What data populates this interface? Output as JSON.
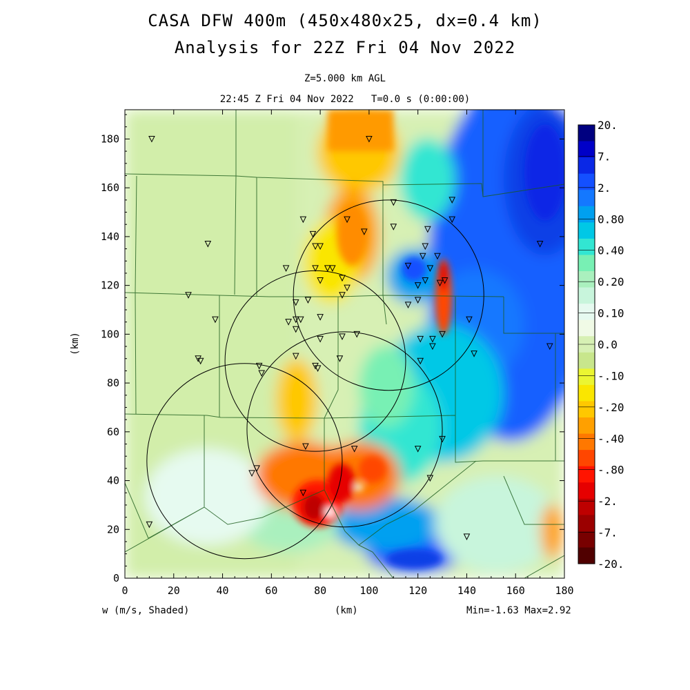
{
  "chart_data": {
    "type": "heatmap",
    "title_line1": "CASA DFW 400m (450x480x25, dx=0.4 km)",
    "title_line2": "Analysis for 22Z Fri 04 Nov 2022",
    "subtitle_level": "Z=5.000 km AGL",
    "subtitle_time": "22:45 Z Fri 04 Nov 2022   T=0.0 s (0:00:00)",
    "xlabel": "(km)",
    "ylabel": "(km)",
    "xlim": [
      0,
      180
    ],
    "ylim": [
      0,
      192
    ],
    "x_ticks": [
      0,
      20,
      40,
      60,
      80,
      100,
      120,
      140,
      160,
      180
    ],
    "y_ticks": [
      0,
      20,
      40,
      60,
      80,
      100,
      120,
      140,
      160,
      180
    ],
    "field_label": "w (m/s, Shaded)",
    "min_max_text": "Min=-1.63 Max=2.92",
    "colorbar_labels": [
      "20.",
      "7.",
      "2.",
      "0.80",
      "0.40",
      "0.20",
      "0.10",
      "0.0",
      "-.10",
      "-.20",
      "-.40",
      "-.80",
      "-2.",
      "-7.",
      "-20."
    ],
    "colorbar_colors": [
      "#000080",
      "#0000c8",
      "#0a28e6",
      "#1450ff",
      "#1478ff",
      "#00a0f0",
      "#00c8e6",
      "#32e6d2",
      "#78f0b4",
      "#aaf0be",
      "#c8f5dc",
      "#e6faf0",
      "#f0fae6",
      "#d7f0b4",
      "#c8e68c",
      "#ebf532",
      "#fae600",
      "#ffc800",
      "#ffa000",
      "#ff7800",
      "#ff4600",
      "#ff1400",
      "#e60000",
      "#be0000",
      "#9b0000",
      "#780000",
      "#500000"
    ],
    "radar_circles": [
      {
        "x": 108,
        "y": 116,
        "r": 39
      },
      {
        "x": 78,
        "y": 89,
        "r": 37
      },
      {
        "x": 90,
        "y": 61,
        "r": 40
      },
      {
        "x": 49,
        "y": 48,
        "r": 40
      }
    ],
    "stations": [
      [
        11,
        180
      ],
      [
        100,
        180
      ],
      [
        110,
        154
      ],
      [
        134,
        155
      ],
      [
        134,
        147
      ],
      [
        73,
        147
      ],
      [
        91,
        147
      ],
      [
        110,
        144
      ],
      [
        98,
        142
      ],
      [
        124,
        143
      ],
      [
        77,
        141
      ],
      [
        34,
        137
      ],
      [
        78,
        136
      ],
      [
        80,
        136
      ],
      [
        123,
        136
      ],
      [
        122,
        132
      ],
      [
        128,
        132
      ],
      [
        116,
        128
      ],
      [
        66,
        127
      ],
      [
        83,
        127
      ],
      [
        78,
        127
      ],
      [
        85,
        127
      ],
      [
        125,
        127
      ],
      [
        89,
        123
      ],
      [
        80,
        122
      ],
      [
        123,
        122
      ],
      [
        131,
        122
      ],
      [
        129,
        121
      ],
      [
        120,
        120
      ],
      [
        91,
        119
      ],
      [
        26,
        116
      ],
      [
        70,
        113
      ],
      [
        75,
        114
      ],
      [
        89,
        116
      ],
      [
        120,
        114
      ],
      [
        116,
        112
      ],
      [
        67,
        105
      ],
      [
        70,
        106
      ],
      [
        72,
        106
      ],
      [
        80,
        107
      ],
      [
        37,
        106
      ],
      [
        141,
        106
      ],
      [
        70,
        102
      ],
      [
        80,
        98
      ],
      [
        89,
        99
      ],
      [
        95,
        100
      ],
      [
        121,
        98
      ],
      [
        126,
        98
      ],
      [
        130,
        100
      ],
      [
        126,
        95
      ],
      [
        143,
        92
      ],
      [
        174,
        95
      ],
      [
        70,
        91
      ],
      [
        79,
        86
      ],
      [
        78,
        87
      ],
      [
        88,
        90
      ],
      [
        121,
        89
      ],
      [
        30,
        90
      ],
      [
        31,
        89
      ],
      [
        55,
        87
      ],
      [
        56,
        84
      ],
      [
        74,
        54
      ],
      [
        94,
        53
      ],
      [
        120,
        53
      ],
      [
        130,
        57
      ],
      [
        52,
        43
      ],
      [
        54,
        45
      ],
      [
        125,
        41
      ],
      [
        73,
        35
      ],
      [
        10,
        22
      ],
      [
        140,
        17
      ],
      [
        170,
        137
      ]
    ]
  }
}
